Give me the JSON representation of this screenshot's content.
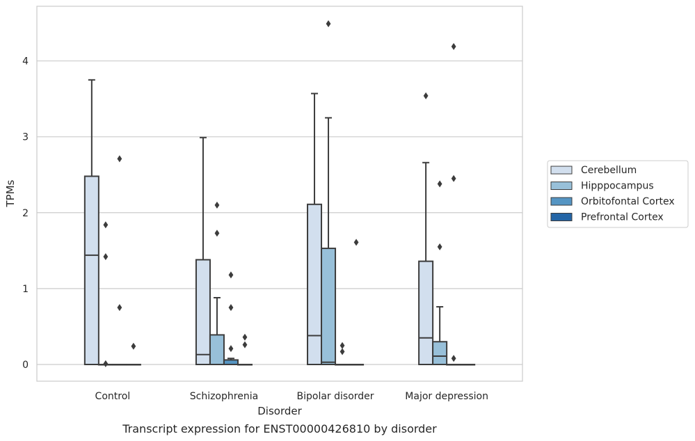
{
  "chart_data": {
    "type": "box",
    "title": "",
    "caption": "Transcript expression for ENST00000426810 by disorder",
    "xlabel": "Disorder",
    "ylabel": "TPMs",
    "ylim": [
      -0.22,
      4.72
    ],
    "yticks": [
      0,
      1,
      2,
      3,
      4
    ],
    "ytick_labels": [
      "0",
      "1",
      "2",
      "3",
      "4"
    ],
    "grid": "horizontal",
    "legend_position": "right",
    "colors": {
      "Cerebellum": "#d2dfee",
      "Hipppocampus": "#98c0d9",
      "Orbitofontal Cortex": "#5595c3",
      "Prefrontal Cortex": "#2465a6"
    },
    "categories": [
      "Control",
      "Schizophrenia",
      "Bipolar disorder",
      "Major depression"
    ],
    "series": [
      {
        "name": "Cerebellum",
        "boxes": [
          {
            "whislo": 0,
            "q1": 0,
            "med": 1.44,
            "q3": 2.48,
            "whishi": 3.75,
            "fliers": []
          },
          {
            "whislo": 0,
            "q1": 0,
            "med": 0.13,
            "q3": 1.38,
            "whishi": 2.99,
            "fliers": []
          },
          {
            "whislo": 0,
            "q1": 0,
            "med": 0.38,
            "q3": 2.11,
            "whishi": 3.57,
            "fliers": []
          },
          {
            "whislo": 0,
            "q1": 0,
            "med": 0.35,
            "q3": 1.36,
            "whishi": 2.66,
            "fliers": [
              3.54
            ]
          }
        ]
      },
      {
        "name": "Hipppocampus",
        "boxes": [
          {
            "whislo": 0,
            "q1": 0,
            "med": 0,
            "q3": 0,
            "whishi": 0,
            "fliers": [
              1.84,
              1.42,
              0.01
            ]
          },
          {
            "whislo": 0,
            "q1": 0,
            "med": 0,
            "q3": 0.39,
            "whishi": 0.88,
            "fliers": [
              2.1,
              1.73
            ]
          },
          {
            "whislo": 0,
            "q1": 0,
            "med": 0.03,
            "q3": 1.53,
            "whishi": 3.25,
            "fliers": [
              4.49
            ]
          },
          {
            "whislo": 0,
            "q1": 0,
            "med": 0.11,
            "q3": 0.3,
            "whishi": 0.76,
            "fliers": [
              2.38,
              1.55
            ]
          }
        ]
      },
      {
        "name": "Orbitofontal Cortex",
        "boxes": [
          {
            "whislo": 0,
            "q1": 0,
            "med": 0,
            "q3": 0,
            "whishi": 0,
            "fliers": [
              2.71,
              0.75
            ]
          },
          {
            "whislo": 0,
            "q1": 0,
            "med": 0,
            "q3": 0.06,
            "whishi": 0.08,
            "fliers": [
              1.18,
              0.75,
              0.21
            ]
          },
          {
            "whislo": 0,
            "q1": 0,
            "med": 0,
            "q3": 0,
            "whishi": 0,
            "fliers": [
              0.25,
              0.17
            ]
          },
          {
            "whislo": 0,
            "q1": 0,
            "med": 0,
            "q3": 0,
            "whishi": 0,
            "fliers": [
              4.19,
              2.45,
              0.08
            ]
          }
        ]
      },
      {
        "name": "Prefrontal Cortex",
        "boxes": [
          {
            "whislo": 0,
            "q1": 0,
            "med": 0,
            "q3": 0,
            "whishi": 0,
            "fliers": [
              0.24
            ]
          },
          {
            "whislo": 0,
            "q1": 0,
            "med": 0,
            "q3": 0,
            "whishi": 0,
            "fliers": [
              0.36,
              0.26
            ]
          },
          {
            "whislo": 0,
            "q1": 0,
            "med": 0,
            "q3": 0,
            "whishi": 0,
            "fliers": [
              1.61
            ]
          },
          {
            "whislo": 0,
            "q1": 0,
            "med": 0,
            "q3": 0,
            "whishi": 0,
            "fliers": []
          }
        ]
      }
    ]
  }
}
